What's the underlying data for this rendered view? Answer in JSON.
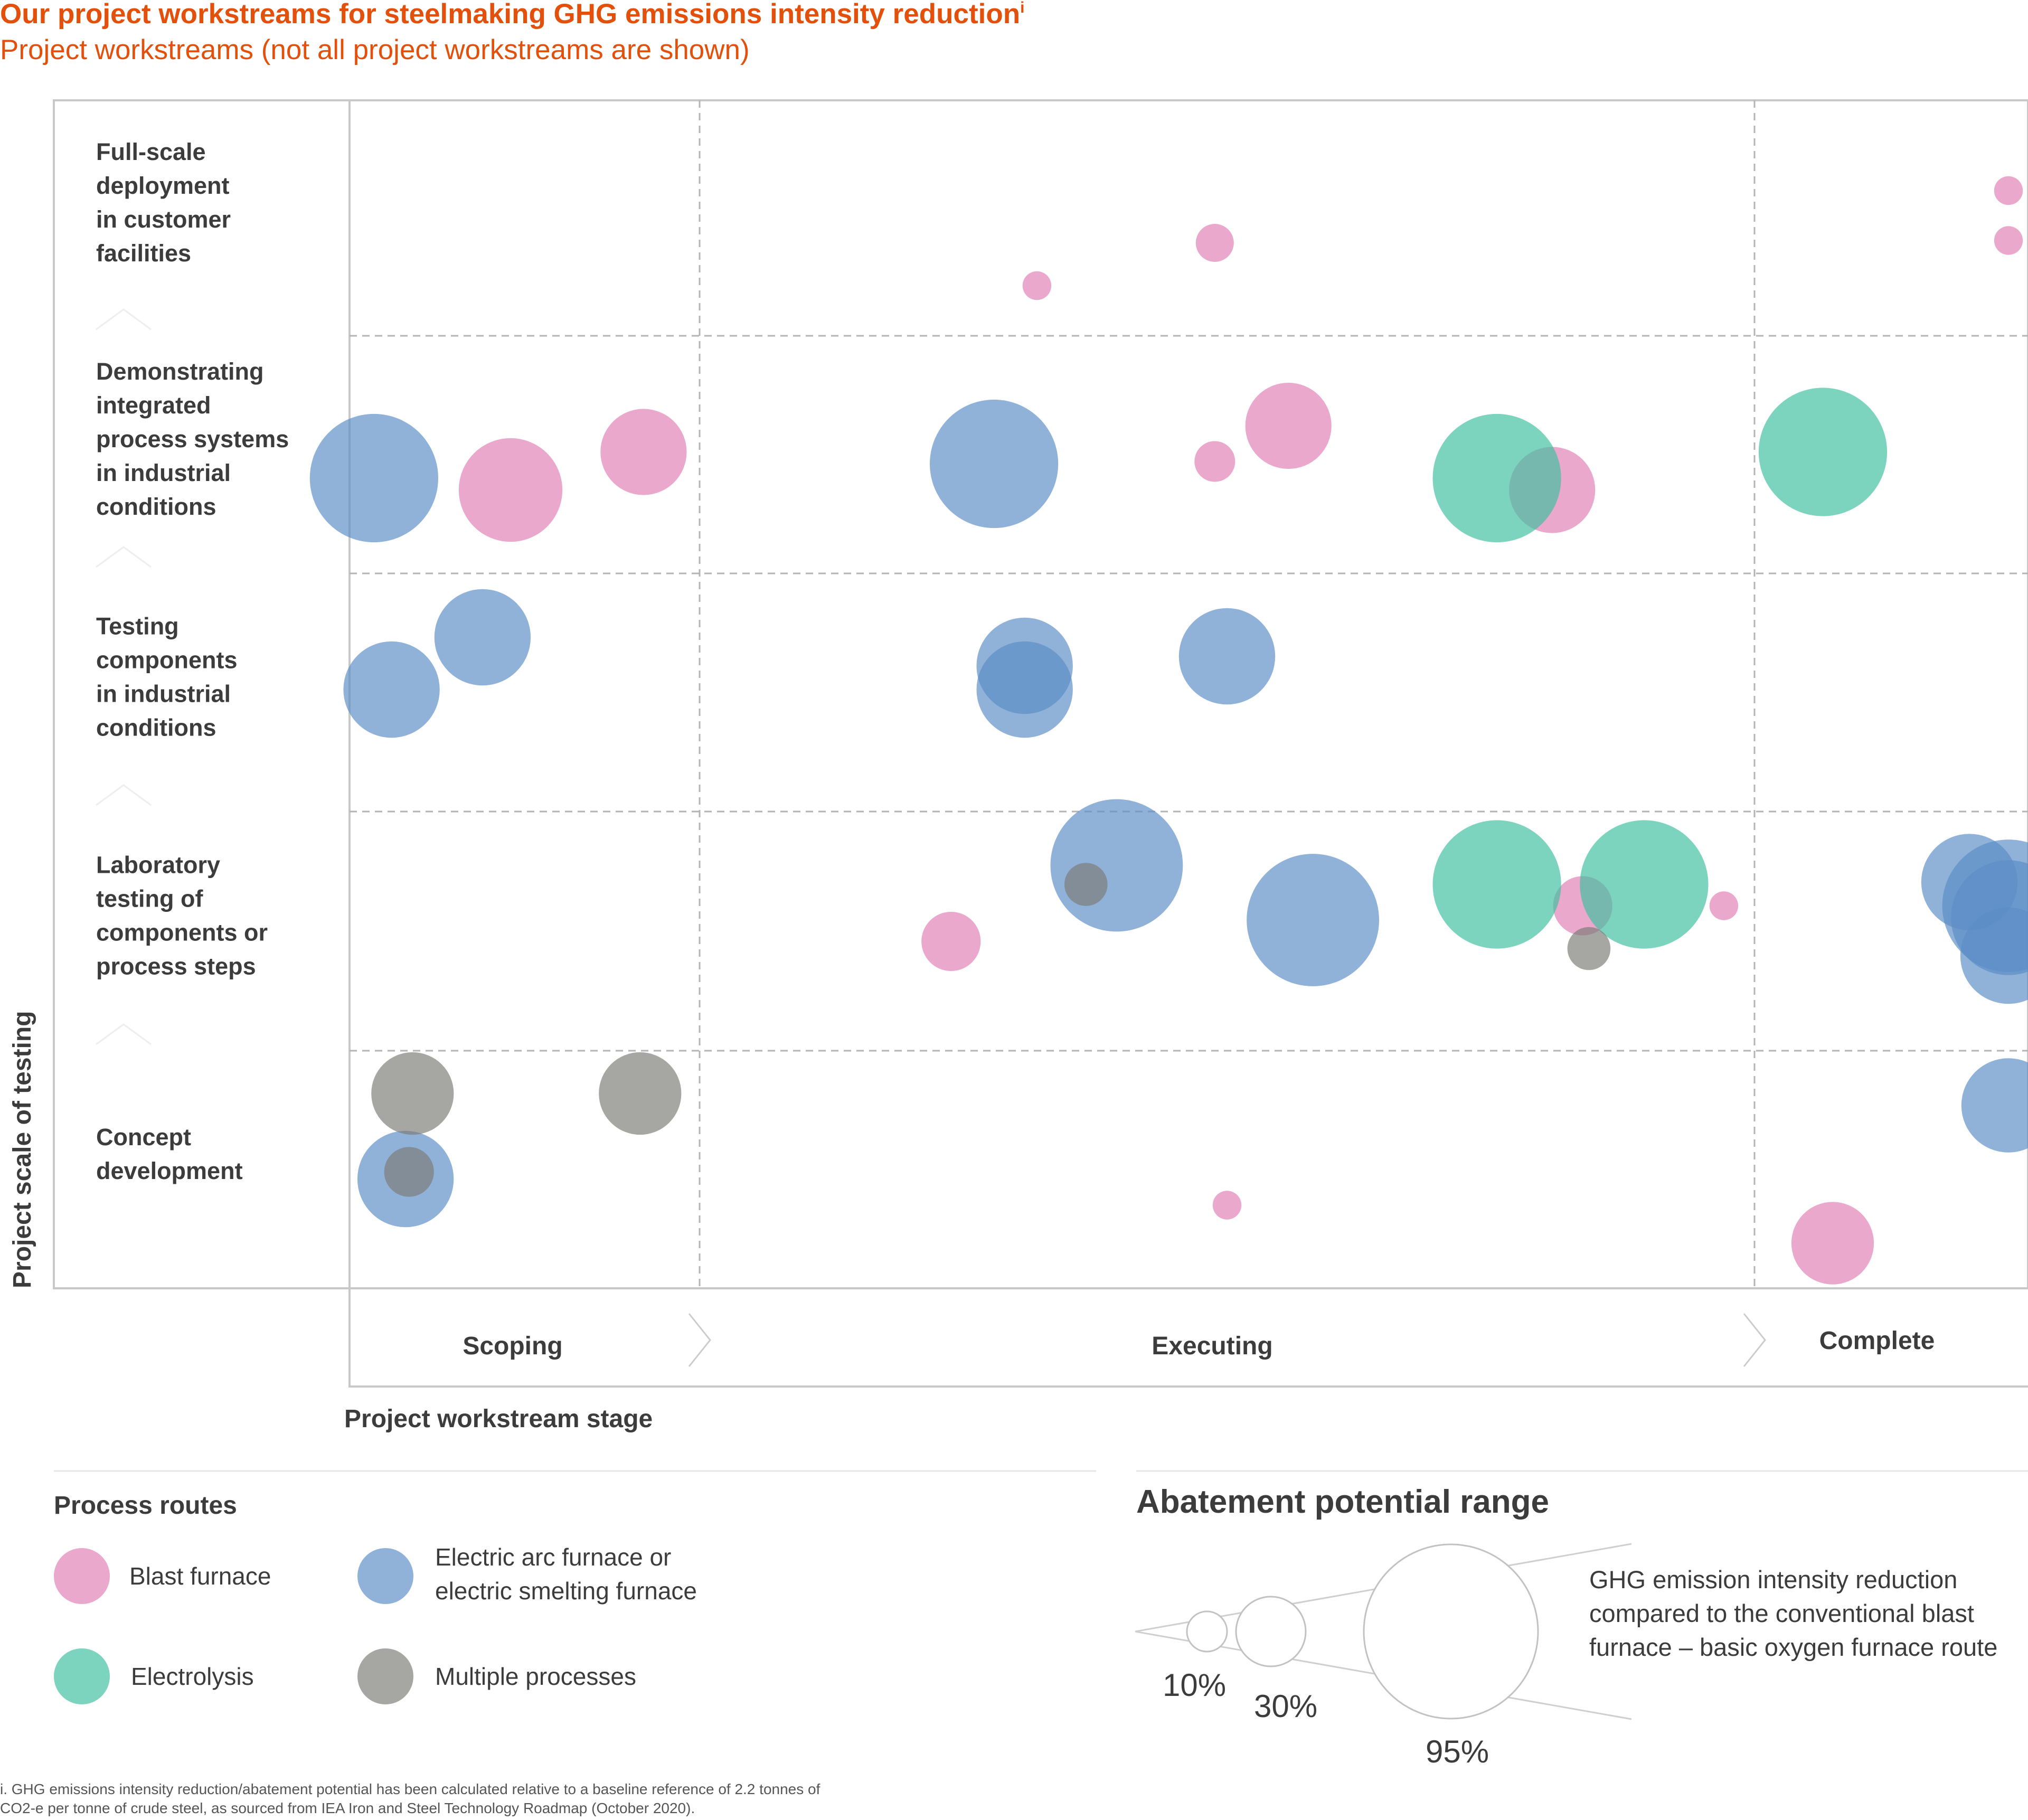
{
  "title": "Our project workstreams for steelmaking GHG emissions intensity reduction",
  "title_sup": "i",
  "subtitle": "Project workstreams (not all project workstreams are shown)",
  "colors": {
    "blast_furnace": "#e07fb6",
    "eaf": "#5b8ec5",
    "electrolysis": "#3fbf9f",
    "multiple": "#7c7c78",
    "title": "#e2500b"
  },
  "chart_data": {
    "type": "bubble",
    "ylabel": "Project scale of testing",
    "xlabel": "Project workstream stage",
    "y_categories": [
      "Full-scale deployment in customer facilities",
      "Demonstrating integrated process systems in industrial conditions",
      "Testing components in industrial conditions",
      "Laboratory testing of components or process steps",
      "Concept development"
    ],
    "y_category_lines": [
      [
        "Full-scale",
        "deployment",
        "in customer",
        "facilities"
      ],
      [
        "Demonstrating",
        "integrated",
        "process systems",
        "in industrial",
        "conditions"
      ],
      [
        "Testing",
        "components",
        "in industrial",
        "conditions"
      ],
      [
        "Laboratory",
        "testing of",
        "components or",
        "process steps"
      ],
      [
        "Concept",
        "development"
      ]
    ],
    "x_stages": [
      "Scoping",
      "Executing",
      "Complete"
    ],
    "series": [
      {
        "name": "Blast furnace",
        "color_key": "blast_furnace",
        "points": [
          {
            "stage": 1.55,
            "level": 4.22,
            "abatement_pct": 4
          },
          {
            "stage": 1.84,
            "level": 4.4,
            "abatement_pct": 7
          },
          {
            "stage": 2.98,
            "level": 4.62,
            "abatement_pct": 4
          },
          {
            "stage": 2.98,
            "level": 4.41,
            "abatement_pct": 4
          },
          {
            "stage": 1.84,
            "level": 3.48,
            "abatement_pct": 8
          },
          {
            "stage": 0.46,
            "level": 3.36,
            "abatement_pct": 52
          },
          {
            "stage": 0.84,
            "level": 3.52,
            "abatement_pct": 36
          },
          {
            "stage": 1.96,
            "level": 3.63,
            "abatement_pct": 36
          },
          {
            "stage": 2.39,
            "level": 3.36,
            "abatement_pct": 36
          },
          {
            "stage": 1.41,
            "level": 1.46,
            "abatement_pct": 17
          },
          {
            "stage": 2.44,
            "level": 1.61,
            "abatement_pct": 17
          },
          {
            "stage": 2.67,
            "level": 1.61,
            "abatement_pct": 4
          },
          {
            "stage": 1.86,
            "level": 0.35,
            "abatement_pct": 4
          },
          {
            "stage": 2.8,
            "level": 0.19,
            "abatement_pct": 33
          }
        ]
      },
      {
        "name": "Electric arc furnace or electric smelting furnace",
        "color_key": "eaf",
        "points": [
          {
            "stage": 0.07,
            "level": 3.41,
            "abatement_pct": 80
          },
          {
            "stage": 1.48,
            "level": 3.47,
            "abatement_pct": 80
          },
          {
            "stage": 0.12,
            "level": 2.52,
            "abatement_pct": 45
          },
          {
            "stage": 0.38,
            "level": 2.74,
            "abatement_pct": 45
          },
          {
            "stage": 1.53,
            "level": 2.62,
            "abatement_pct": 45
          },
          {
            "stage": 1.53,
            "level": 2.52,
            "abatement_pct": 45
          },
          {
            "stage": 1.86,
            "level": 2.66,
            "abatement_pct": 45
          },
          {
            "stage": 1.68,
            "level": 1.78,
            "abatement_pct": 85
          },
          {
            "stage": 2.0,
            "level": 1.55,
            "abatement_pct": 85
          },
          {
            "stage": 2.94,
            "level": 1.71,
            "abatement_pct": 45
          },
          {
            "stage": 2.98,
            "level": 1.61,
            "abatement_pct": 85
          },
          {
            "stage": 2.98,
            "level": 1.56,
            "abatement_pct": 64
          },
          {
            "stage": 2.98,
            "level": 1.4,
            "abatement_pct": 45
          },
          {
            "stage": 2.98,
            "level": 0.77,
            "abatement_pct": 43
          },
          {
            "stage": 0.16,
            "level": 0.46,
            "abatement_pct": 45
          }
        ]
      },
      {
        "name": "Electrolysis",
        "color_key": "electrolysis",
        "points": [
          {
            "stage": 2.3,
            "level": 3.41,
            "abatement_pct": 80
          },
          {
            "stage": 2.79,
            "level": 3.52,
            "abatement_pct": 80
          },
          {
            "stage": 2.3,
            "level": 1.7,
            "abatement_pct": 80
          },
          {
            "stage": 2.54,
            "level": 1.7,
            "abatement_pct": 80
          }
        ]
      },
      {
        "name": "Multiple processes",
        "color_key": "multiple",
        "points": [
          {
            "stage": 0.18,
            "level": 0.82,
            "abatement_pct": 33
          },
          {
            "stage": 0.83,
            "level": 0.82,
            "abatement_pct": 33
          },
          {
            "stage": 0.17,
            "level": 0.49,
            "abatement_pct": 12
          },
          {
            "stage": 1.63,
            "level": 1.7,
            "abatement_pct": 9
          },
          {
            "stage": 2.45,
            "level": 1.43,
            "abatement_pct": 9
          }
        ]
      }
    ]
  },
  "legend": {
    "title": "Process routes",
    "items": [
      {
        "lines": [
          "Blast furnace"
        ],
        "color_key": "blast_furnace"
      },
      {
        "lines": [
          "Electric arc furnace or",
          "electric smelting furnace"
        ],
        "color_key": "eaf"
      },
      {
        "lines": [
          "Electrolysis"
        ],
        "color_key": "electrolysis"
      },
      {
        "lines": [
          "Multiple processes"
        ],
        "color_key": "multiple"
      }
    ]
  },
  "abatement": {
    "title": "Abatement potential range",
    "description_lines": [
      "GHG emission intensity reduction",
      "compared to the conventional blast",
      "furnace – basic oxygen furnace route"
    ],
    "sizes": [
      {
        "label": "10%",
        "pct": 10
      },
      {
        "label": "30%",
        "pct": 30
      },
      {
        "label": "95%",
        "pct": 95
      }
    ]
  },
  "footnote_lines": [
    "i.   GHG emissions intensity reduction/abatement potential has been calculated relative to a baseline reference of 2.2 tonnes of",
    "      CO2-e per tonne of crude steel, as sourced from IEA Iron and Steel Technology Roadmap (October 2020)."
  ]
}
